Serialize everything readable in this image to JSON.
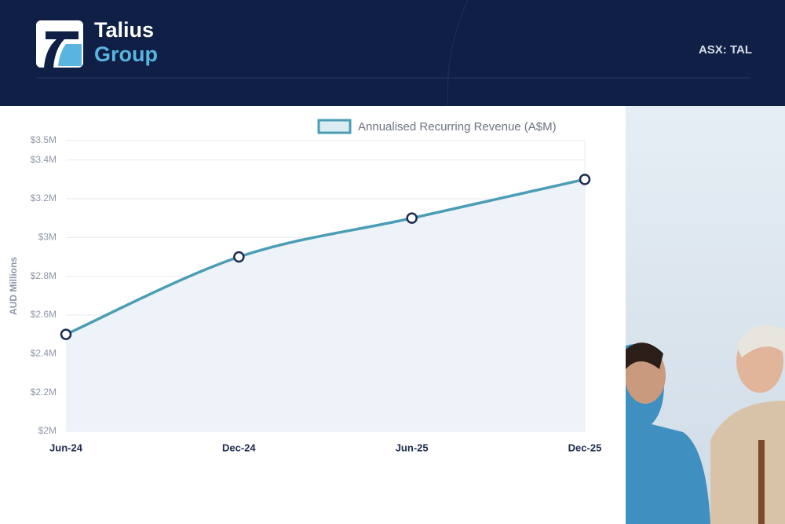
{
  "header": {
    "brand_line1": "Talius",
    "brand_line2": "Group",
    "ticker": "ASX: TAL"
  },
  "chart_data": {
    "type": "line",
    "y_label": "AUD Millions",
    "categories": [
      "Jun-24",
      "Dec-24",
      "Jun-25",
      "Dec-25"
    ],
    "series": [
      {
        "name": "Annualised Recurring Revenue (A$M)",
        "color": "#4a9db5",
        "values": [
          2.5,
          2.9,
          3.1,
          3.3
        ]
      }
    ],
    "ylim": [
      2,
      3.5
    ],
    "yticks": [
      {
        "value": 2,
        "label": "$2M"
      },
      {
        "value": 2.2,
        "label": "$2.2M"
      },
      {
        "value": 2.4,
        "label": "$2.4M"
      },
      {
        "value": 2.6,
        "label": "$2.6M"
      },
      {
        "value": 2.8,
        "label": "$2.8M"
      },
      {
        "value": 3,
        "label": "$3M"
      },
      {
        "value": 3.2,
        "label": "$3.2M"
      },
      {
        "value": 3.4,
        "label": "$3.4M"
      },
      {
        "value": 3.5,
        "label": "$3.5M"
      }
    ],
    "grid": true,
    "legend": "top-right"
  }
}
